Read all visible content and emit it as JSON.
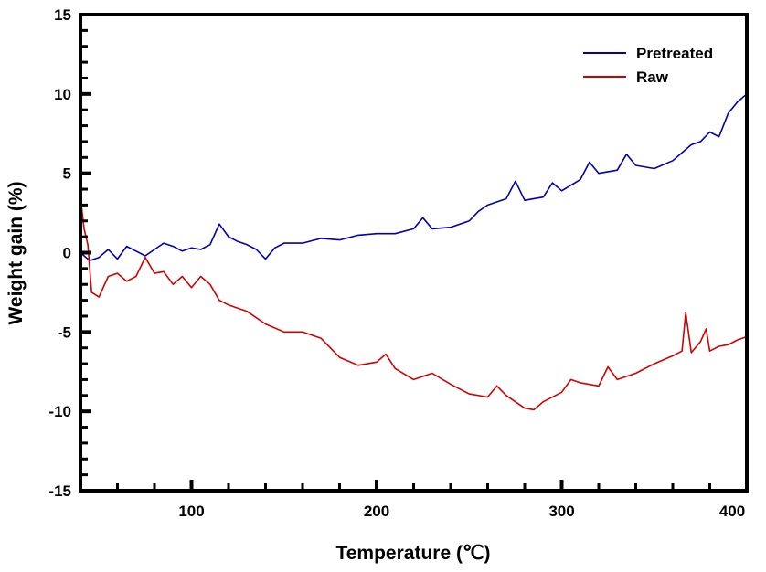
{
  "chart_data": {
    "type": "line",
    "title": "",
    "xlabel": "Temperature (℃)",
    "ylabel": "Weight gain (%)",
    "xlim": [
      40,
      400
    ],
    "ylim": [
      -15,
      15
    ],
    "xticks": [
      100,
      200,
      300,
      400
    ],
    "yticks": [
      -15,
      -10,
      -5,
      0,
      5,
      10,
      15
    ],
    "grid": false,
    "legend_position": "top-right",
    "series": [
      {
        "name": "Pretreated",
        "color": "#0000b4",
        "x": [
          40,
          45,
          50,
          55,
          60,
          65,
          70,
          75,
          80,
          85,
          90,
          95,
          100,
          105,
          110,
          115,
          120,
          125,
          130,
          135,
          140,
          145,
          150,
          160,
          170,
          180,
          190,
          200,
          210,
          220,
          225,
          230,
          240,
          250,
          255,
          260,
          270,
          275,
          280,
          290,
          295,
          300,
          310,
          315,
          320,
          330,
          335,
          340,
          350,
          360,
          370,
          375,
          380,
          385,
          390,
          395,
          400
        ],
        "values": [
          0,
          -0.5,
          -0.3,
          0.2,
          -0.4,
          0.4,
          0.1,
          -0.2,
          0.2,
          0.6,
          0.4,
          0.1,
          0.3,
          0.2,
          0.5,
          1.8,
          1.0,
          0.7,
          0.5,
          0.2,
          -0.4,
          0.3,
          0.6,
          0.6,
          0.9,
          0.8,
          1.1,
          1.2,
          1.2,
          1.5,
          2.2,
          1.5,
          1.6,
          2.0,
          2.6,
          3.0,
          3.4,
          4.5,
          3.3,
          3.5,
          4.4,
          3.9,
          4.6,
          5.7,
          5.0,
          5.2,
          6.2,
          5.5,
          5.3,
          5.8,
          6.8,
          7.0,
          7.6,
          7.3,
          8.8,
          9.5,
          10.0
        ]
      },
      {
        "name": "Raw",
        "color": "#d40000",
        "x": [
          40,
          42,
          44,
          46,
          50,
          55,
          60,
          65,
          70,
          75,
          80,
          85,
          90,
          95,
          100,
          105,
          110,
          115,
          120,
          130,
          140,
          150,
          160,
          170,
          180,
          190,
          200,
          205,
          210,
          220,
          230,
          240,
          250,
          260,
          265,
          270,
          280,
          285,
          290,
          300,
          305,
          310,
          320,
          325,
          330,
          340,
          350,
          360,
          365,
          367,
          370,
          375,
          378,
          380,
          385,
          390,
          395,
          400
        ],
        "values": [
          3.5,
          1.5,
          0.5,
          -2.5,
          -2.8,
          -1.5,
          -1.3,
          -1.8,
          -1.5,
          -0.3,
          -1.3,
          -1.2,
          -2.0,
          -1.5,
          -2.2,
          -1.5,
          -2.0,
          -3.0,
          -3.3,
          -3.7,
          -4.5,
          -5.0,
          -5.0,
          -5.4,
          -6.6,
          -7.1,
          -6.9,
          -6.4,
          -7.3,
          -8.0,
          -7.6,
          -8.3,
          -8.9,
          -9.1,
          -8.4,
          -9.0,
          -9.8,
          -9.9,
          -9.4,
          -8.8,
          -8.0,
          -8.2,
          -8.4,
          -7.2,
          -8.0,
          -7.6,
          -7.0,
          -6.5,
          -6.2,
          -3.8,
          -6.3,
          -5.6,
          -4.8,
          -6.2,
          -5.9,
          -5.8,
          -5.5,
          -5.3
        ]
      }
    ]
  }
}
